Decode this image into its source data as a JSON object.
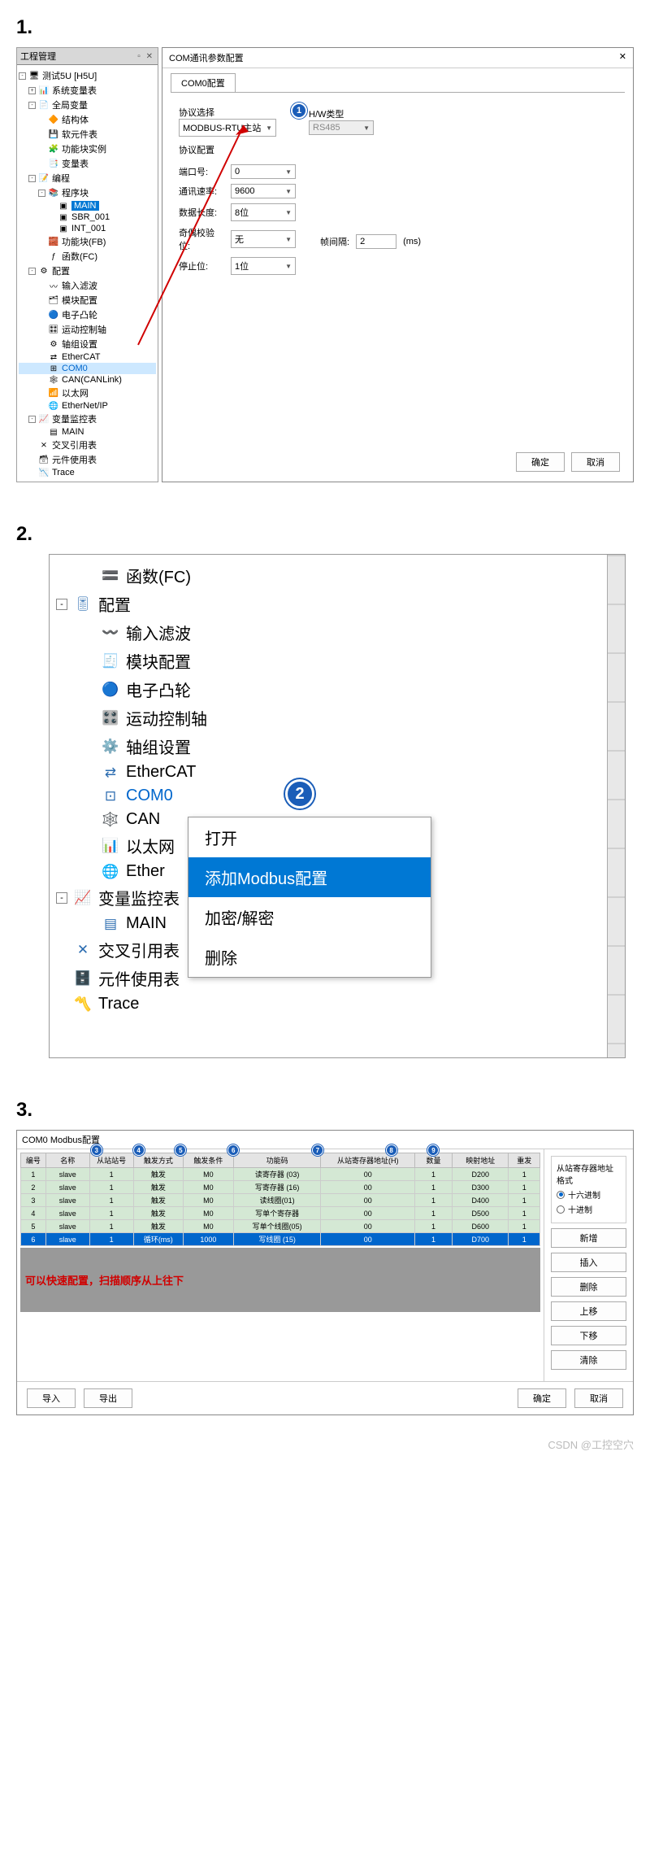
{
  "section_labels": {
    "s1": "1.",
    "s2": "2.",
    "s3": "3."
  },
  "panel1": {
    "tree_title": "工程管理",
    "root": "测试5U  [H5U]",
    "nodes": [
      {
        "ind": 1,
        "tog": "+",
        "icon": "📊",
        "label": "系统变量表"
      },
      {
        "ind": 1,
        "tog": "-",
        "icon": "📄",
        "label": "全局变量"
      },
      {
        "ind": 2,
        "tog": "",
        "icon": "🔶",
        "label": "结构体"
      },
      {
        "ind": 2,
        "tog": "",
        "icon": "💾",
        "label": "软元件表"
      },
      {
        "ind": 2,
        "tog": "",
        "icon": "🧩",
        "label": "功能块实例"
      },
      {
        "ind": 2,
        "tog": "",
        "icon": "📑",
        "label": "变量表"
      },
      {
        "ind": 1,
        "tog": "-",
        "icon": "📝",
        "label": "编程"
      },
      {
        "ind": 2,
        "tog": "-",
        "icon": "📚",
        "label": "程序块"
      },
      {
        "ind": 3,
        "tog": "",
        "icon": "▣",
        "label": "MAIN",
        "cls": "main"
      },
      {
        "ind": 3,
        "tog": "",
        "icon": "▣",
        "label": "SBR_001"
      },
      {
        "ind": 3,
        "tog": "",
        "icon": "▣",
        "label": "INT_001"
      },
      {
        "ind": 2,
        "tog": "",
        "icon": "🧱",
        "label": "功能块(FB)"
      },
      {
        "ind": 2,
        "tog": "",
        "icon": "ƒ",
        "label": "函数(FC)"
      },
      {
        "ind": 1,
        "tog": "-",
        "icon": "⚙",
        "label": "配置"
      },
      {
        "ind": 2,
        "tog": "",
        "icon": "〰",
        "label": "输入滤波"
      },
      {
        "ind": 2,
        "tog": "",
        "icon": "🗂",
        "label": "模块配置"
      },
      {
        "ind": 2,
        "tog": "",
        "icon": "🔵",
        "label": "电子凸轮"
      },
      {
        "ind": 2,
        "tog": "",
        "icon": "🎛",
        "label": "运动控制轴"
      },
      {
        "ind": 2,
        "tog": "",
        "icon": "⚙",
        "label": "轴组设置"
      },
      {
        "ind": 2,
        "tog": "",
        "icon": "⇄",
        "label": "EtherCAT"
      },
      {
        "ind": 2,
        "tog": "",
        "icon": "⊞",
        "label": "COM0",
        "cls": "com0",
        "sel": true
      },
      {
        "ind": 2,
        "tog": "",
        "icon": "🕸",
        "label": "CAN(CANLink)"
      },
      {
        "ind": 2,
        "tog": "",
        "icon": "📶",
        "label": "以太网"
      },
      {
        "ind": 2,
        "tog": "",
        "icon": "🌐",
        "label": "EtherNet/IP"
      },
      {
        "ind": 1,
        "tog": "-",
        "icon": "📈",
        "label": "变量监控表"
      },
      {
        "ind": 2,
        "tog": "",
        "icon": "▤",
        "label": "MAIN"
      },
      {
        "ind": 1,
        "tog": "",
        "icon": "⨯",
        "label": "交叉引用表"
      },
      {
        "ind": 1,
        "tog": "",
        "icon": "🗃",
        "label": "元件使用表"
      },
      {
        "ind": 1,
        "tog": "",
        "icon": "📉",
        "label": "Trace"
      }
    ],
    "dialog": {
      "title": "COM通讯参数配置",
      "tab": "COM0配置",
      "protocol_label": "协议选择",
      "protocol_value": "MODBUS-RTU主站",
      "hw_label": "H/W类型",
      "hw_value": "RS485",
      "group_label": "协议配置",
      "rows": [
        {
          "label": "端口号:",
          "value": "0"
        },
        {
          "label": "通讯速率:",
          "value": "9600"
        },
        {
          "label": "数据长度:",
          "value": "8位"
        },
        {
          "label": "奇偶校验位:",
          "value": "无"
        },
        {
          "label": "停止位:",
          "value": "1位"
        }
      ],
      "frame_gap_label": "帧间隔:",
      "frame_gap_value": "2",
      "frame_gap_unit": "(ms)",
      "ok": "确定",
      "cancel": "取消",
      "badge1": "1"
    }
  },
  "panel2": {
    "nodes": [
      {
        "ind": 2,
        "tog": "",
        "icon": "🟰",
        "label": "函数(FC)"
      },
      {
        "ind": 0,
        "tog": "-",
        "icon": "🎚",
        "label": "配置"
      },
      {
        "ind": 2,
        "tog": "",
        "icon": "〰️",
        "label": "输入滤波"
      },
      {
        "ind": 2,
        "tog": "",
        "icon": "🧾",
        "label": "模块配置"
      },
      {
        "ind": 2,
        "tog": "",
        "icon": "🔵",
        "label": "电子凸轮"
      },
      {
        "ind": 2,
        "tog": "",
        "icon": "🎛️",
        "label": "运动控制轴"
      },
      {
        "ind": 2,
        "tog": "",
        "icon": "⚙️",
        "label": "轴组设置"
      },
      {
        "ind": 2,
        "tog": "",
        "icon": "⇄",
        "label": "EtherCAT"
      },
      {
        "ind": 2,
        "tog": "",
        "icon": "⊡",
        "label": "COM0",
        "com": true
      },
      {
        "ind": 2,
        "tog": "",
        "icon": "🕸️",
        "label": "CAN"
      },
      {
        "ind": 2,
        "tog": "",
        "icon": "📊",
        "label": "以太网"
      },
      {
        "ind": 2,
        "tog": "",
        "icon": "🌐",
        "label": "Ether"
      },
      {
        "ind": 0,
        "tog": "-",
        "icon": "📈",
        "label": "变量监控表"
      },
      {
        "ind": 2,
        "tog": "",
        "icon": "▤",
        "label": "MAIN"
      },
      {
        "ind": 1,
        "tog": "",
        "icon": "✕",
        "label": "交叉引用表"
      },
      {
        "ind": 1,
        "tog": "",
        "icon": "🗄️",
        "label": "元件使用表"
      },
      {
        "ind": 1,
        "tog": "",
        "icon": "〽️",
        "label": "Trace"
      }
    ],
    "menu": [
      {
        "label": "打开"
      },
      {
        "label": "添加Modbus配置",
        "sel": true
      },
      {
        "label": "加密/解密"
      },
      {
        "label": "删除"
      }
    ],
    "badge2": "2"
  },
  "panel3": {
    "title": "COM0 Modbus配置",
    "headers": [
      "编号",
      "名称",
      "从站站号",
      "触发方式",
      "触发条件",
      "功能码",
      "从站寄存器地址(H)",
      "数量",
      "映射地址",
      "重发"
    ],
    "badges": [
      "3",
      "4",
      "5",
      "6",
      "7",
      "8",
      "9"
    ],
    "rows": [
      [
        "1",
        "slave",
        "1",
        "触发",
        "M0",
        "读寄存器 (03)",
        "00",
        "1",
        "D200",
        "1"
      ],
      [
        "2",
        "slave",
        "1",
        "触发",
        "M0",
        "写寄存器 (16)",
        "00",
        "1",
        "D300",
        "1"
      ],
      [
        "3",
        "slave",
        "1",
        "触发",
        "M0",
        "读线圈(01)",
        "00",
        "1",
        "D400",
        "1"
      ],
      [
        "4",
        "slave",
        "1",
        "触发",
        "M0",
        "写单个寄存器",
        "00",
        "1",
        "D500",
        "1"
      ],
      [
        "5",
        "slave",
        "1",
        "触发",
        "M0",
        "写单个线圈(05)",
        "00",
        "1",
        "D600",
        "1"
      ],
      [
        "6",
        "slave",
        "1",
        "循环(ms)",
        "1000",
        "写线圈 (15)",
        "00",
        "1",
        "D700",
        "1"
      ]
    ],
    "sel_row": 5,
    "note": "可以快速配置，扫描顺序从上往下",
    "radio_group": "从站寄存器地址格式",
    "radio1": "十六进制",
    "radio2": "十进制",
    "side_buttons": [
      "新增",
      "插入",
      "删除",
      "上移",
      "下移",
      "清除"
    ],
    "footer": {
      "import": "导入",
      "export": "导出",
      "ok": "确定",
      "cancel": "取消"
    }
  },
  "watermark": "CSDN @工控空穴"
}
